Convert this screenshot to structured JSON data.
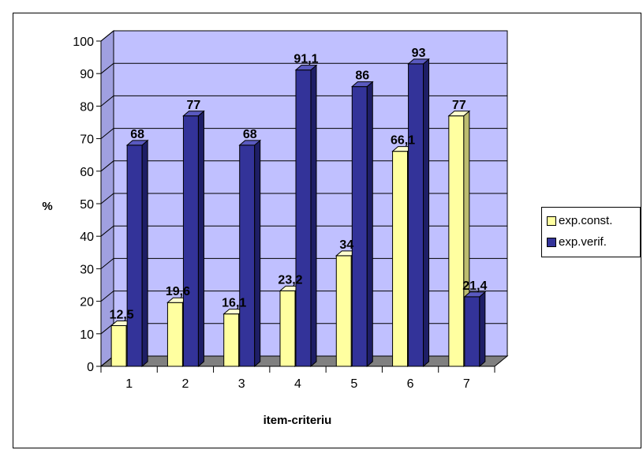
{
  "chart_data": {
    "type": "bar",
    "categories": [
      "1",
      "2",
      "3",
      "4",
      "5",
      "6",
      "7"
    ],
    "series": [
      {
        "name": "exp.const.",
        "values": [
          12.5,
          19.6,
          16.1,
          23.2,
          34,
          66.1,
          77
        ],
        "labels": [
          "12,5",
          "19,6",
          "16,1",
          "23,2",
          "34",
          "66,1",
          "77"
        ]
      },
      {
        "name": "exp.verif.",
        "values": [
          68,
          77,
          68,
          91.1,
          86,
          93,
          21.4
        ],
        "labels": [
          "68",
          "77",
          "68",
          "91,1",
          "86",
          "93",
          "21,4"
        ]
      }
    ],
    "xlabel": "item-criteriu",
    "ylabel": "%",
    "ylim": [
      0,
      100
    ],
    "yticks": [
      0,
      10,
      20,
      30,
      40,
      50,
      60,
      70,
      80,
      90,
      100
    ],
    "grid": true,
    "legend": "right",
    "three_d": true
  },
  "colors": {
    "plot_background": "#c0c0ff",
    "floor": "#808080",
    "series": [
      {
        "front": "#ffffa0",
        "side": "#bcbc70",
        "top": "#ffffd0"
      },
      {
        "front": "#333399",
        "side": "#1e1e66",
        "top": "#5a5ac0"
      }
    ]
  }
}
